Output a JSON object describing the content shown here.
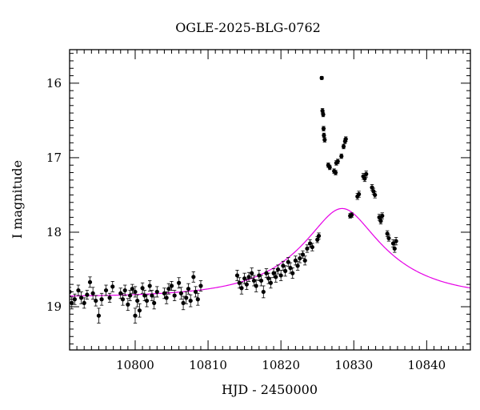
{
  "chart_data": {
    "type": "scatter",
    "title": "OGLE-2025-BLG-0762",
    "xlabel": "HJD - 2450000",
    "ylabel": "I magnitude",
    "xlim": [
      10791,
      10846
    ],
    "ylim": [
      19.58,
      15.55
    ],
    "y_inverted": true,
    "grid": false,
    "x_ticks": [
      10800,
      10810,
      10820,
      10830,
      10840
    ],
    "x_tick_labels": [
      "10800",
      "10810",
      "10820",
      "10830",
      "10840"
    ],
    "y_ticks": [
      16,
      17,
      18,
      19
    ],
    "y_tick_labels": [
      "16",
      "17",
      "18",
      "19"
    ],
    "colors": {
      "points": "#000000",
      "model": "#e600e6"
    },
    "model": {
      "t0": 10828.4,
      "tE": 11.5,
      "u0": 0.35,
      "base_mag": 18.87
    },
    "points": [
      {
        "x": 10791.0,
        "y": 18.8,
        "e": 0.06
      },
      {
        "x": 10791.3,
        "y": 18.95,
        "e": 0.08
      },
      {
        "x": 10791.7,
        "y": 18.9,
        "e": 0.07
      },
      {
        "x": 10792.2,
        "y": 18.78,
        "e": 0.07
      },
      {
        "x": 10792.6,
        "y": 18.88,
        "e": 0.08
      },
      {
        "x": 10793.0,
        "y": 18.95,
        "e": 0.07
      },
      {
        "x": 10793.4,
        "y": 18.84,
        "e": 0.06
      },
      {
        "x": 10793.8,
        "y": 18.67,
        "e": 0.07
      },
      {
        "x": 10794.2,
        "y": 18.82,
        "e": 0.08
      },
      {
        "x": 10794.6,
        "y": 18.92,
        "e": 0.07
      },
      {
        "x": 10795.0,
        "y": 19.12,
        "e": 0.1
      },
      {
        "x": 10795.4,
        "y": 18.9,
        "e": 0.08
      },
      {
        "x": 10796.0,
        "y": 18.78,
        "e": 0.07
      },
      {
        "x": 10796.5,
        "y": 18.88,
        "e": 0.06
      },
      {
        "x": 10796.9,
        "y": 18.73,
        "e": 0.07
      },
      {
        "x": 10798.0,
        "y": 18.82,
        "e": 0.07
      },
      {
        "x": 10798.3,
        "y": 18.9,
        "e": 0.08
      },
      {
        "x": 10798.6,
        "y": 18.78,
        "e": 0.07
      },
      {
        "x": 10799.0,
        "y": 18.97,
        "e": 0.08
      },
      {
        "x": 10799.3,
        "y": 18.85,
        "e": 0.07
      },
      {
        "x": 10799.6,
        "y": 18.76,
        "e": 0.06
      },
      {
        "x": 10800.0,
        "y": 18.8,
        "e": 0.07
      },
      {
        "x": 10800.0,
        "y": 19.12,
        "e": 0.1
      },
      {
        "x": 10800.3,
        "y": 18.92,
        "e": 0.08
      },
      {
        "x": 10800.6,
        "y": 19.05,
        "e": 0.09
      },
      {
        "x": 10801.0,
        "y": 18.75,
        "e": 0.07
      },
      {
        "x": 10801.3,
        "y": 18.85,
        "e": 0.07
      },
      {
        "x": 10801.6,
        "y": 18.92,
        "e": 0.08
      },
      {
        "x": 10802.0,
        "y": 18.72,
        "e": 0.07
      },
      {
        "x": 10802.3,
        "y": 18.85,
        "e": 0.07
      },
      {
        "x": 10802.6,
        "y": 18.95,
        "e": 0.08
      },
      {
        "x": 10803.0,
        "y": 18.8,
        "e": 0.07
      },
      {
        "x": 10804.0,
        "y": 18.82,
        "e": 0.07
      },
      {
        "x": 10804.3,
        "y": 18.88,
        "e": 0.08
      },
      {
        "x": 10804.6,
        "y": 18.76,
        "e": 0.07
      },
      {
        "x": 10805.0,
        "y": 18.72,
        "e": 0.06
      },
      {
        "x": 10805.4,
        "y": 18.85,
        "e": 0.07
      },
      {
        "x": 10806.0,
        "y": 18.68,
        "e": 0.07
      },
      {
        "x": 10806.3,
        "y": 18.82,
        "e": 0.08
      },
      {
        "x": 10806.6,
        "y": 18.95,
        "e": 0.09
      },
      {
        "x": 10807.0,
        "y": 18.88,
        "e": 0.08
      },
      {
        "x": 10807.3,
        "y": 18.76,
        "e": 0.07
      },
      {
        "x": 10807.6,
        "y": 18.92,
        "e": 0.08
      },
      {
        "x": 10808.0,
        "y": 18.6,
        "e": 0.07
      },
      {
        "x": 10808.3,
        "y": 18.8,
        "e": 0.07
      },
      {
        "x": 10808.6,
        "y": 18.9,
        "e": 0.08
      },
      {
        "x": 10809.0,
        "y": 18.72,
        "e": 0.07
      },
      {
        "x": 10814.0,
        "y": 18.58,
        "e": 0.07
      },
      {
        "x": 10814.3,
        "y": 18.68,
        "e": 0.07
      },
      {
        "x": 10814.6,
        "y": 18.75,
        "e": 0.08
      },
      {
        "x": 10815.0,
        "y": 18.62,
        "e": 0.07
      },
      {
        "x": 10815.3,
        "y": 18.7,
        "e": 0.07
      },
      {
        "x": 10815.6,
        "y": 18.6,
        "e": 0.06
      },
      {
        "x": 10816.0,
        "y": 18.55,
        "e": 0.07
      },
      {
        "x": 10816.3,
        "y": 18.65,
        "e": 0.07
      },
      {
        "x": 10816.6,
        "y": 18.72,
        "e": 0.08
      },
      {
        "x": 10817.0,
        "y": 18.58,
        "e": 0.07
      },
      {
        "x": 10817.3,
        "y": 18.65,
        "e": 0.07
      },
      {
        "x": 10817.6,
        "y": 18.8,
        "e": 0.08
      },
      {
        "x": 10818.0,
        "y": 18.55,
        "e": 0.06
      },
      {
        "x": 10818.3,
        "y": 18.62,
        "e": 0.07
      },
      {
        "x": 10818.6,
        "y": 18.68,
        "e": 0.07
      },
      {
        "x": 10819.0,
        "y": 18.55,
        "e": 0.06
      },
      {
        "x": 10819.3,
        "y": 18.6,
        "e": 0.07
      },
      {
        "x": 10819.6,
        "y": 18.5,
        "e": 0.06
      },
      {
        "x": 10820.0,
        "y": 18.58,
        "e": 0.07
      },
      {
        "x": 10820.3,
        "y": 18.45,
        "e": 0.06
      },
      {
        "x": 10820.6,
        "y": 18.52,
        "e": 0.07
      },
      {
        "x": 10821.0,
        "y": 18.4,
        "e": 0.06
      },
      {
        "x": 10821.3,
        "y": 18.48,
        "e": 0.07
      },
      {
        "x": 10821.6,
        "y": 18.55,
        "e": 0.07
      },
      {
        "x": 10822.0,
        "y": 18.38,
        "e": 0.06
      },
      {
        "x": 10822.3,
        "y": 18.45,
        "e": 0.06
      },
      {
        "x": 10822.6,
        "y": 18.35,
        "e": 0.06
      },
      {
        "x": 10823.0,
        "y": 18.3,
        "e": 0.05
      },
      {
        "x": 10823.3,
        "y": 18.38,
        "e": 0.06
      },
      {
        "x": 10823.6,
        "y": 18.22,
        "e": 0.05
      },
      {
        "x": 10824.0,
        "y": 18.15,
        "e": 0.05
      },
      {
        "x": 10824.3,
        "y": 18.2,
        "e": 0.05
      },
      {
        "x": 10825.0,
        "y": 18.1,
        "e": 0.04
      },
      {
        "x": 10825.2,
        "y": 18.05,
        "e": 0.04
      },
      {
        "x": 10825.6,
        "y": 15.93,
        "e": 0.02
      },
      {
        "x": 10825.7,
        "y": 16.37,
        "e": 0.03
      },
      {
        "x": 10825.8,
        "y": 16.42,
        "e": 0.03
      },
      {
        "x": 10825.85,
        "y": 16.61,
        "e": 0.03
      },
      {
        "x": 10825.9,
        "y": 16.7,
        "e": 0.03
      },
      {
        "x": 10826.0,
        "y": 16.76,
        "e": 0.03
      },
      {
        "x": 10826.5,
        "y": 17.1,
        "e": 0.03
      },
      {
        "x": 10826.7,
        "y": 17.13,
        "e": 0.03
      },
      {
        "x": 10827.3,
        "y": 17.18,
        "e": 0.03
      },
      {
        "x": 10827.5,
        "y": 17.2,
        "e": 0.03
      },
      {
        "x": 10827.6,
        "y": 17.07,
        "e": 0.03
      },
      {
        "x": 10827.8,
        "y": 17.05,
        "e": 0.03
      },
      {
        "x": 10828.3,
        "y": 16.98,
        "e": 0.03
      },
      {
        "x": 10828.6,
        "y": 16.85,
        "e": 0.03
      },
      {
        "x": 10828.8,
        "y": 16.78,
        "e": 0.03
      },
      {
        "x": 10828.9,
        "y": 16.75,
        "e": 0.03
      },
      {
        "x": 10829.5,
        "y": 17.78,
        "e": 0.03
      },
      {
        "x": 10829.7,
        "y": 17.77,
        "e": 0.03
      },
      {
        "x": 10830.5,
        "y": 17.52,
        "e": 0.04
      },
      {
        "x": 10830.7,
        "y": 17.49,
        "e": 0.04
      },
      {
        "x": 10831.3,
        "y": 17.25,
        "e": 0.04
      },
      {
        "x": 10831.5,
        "y": 17.28,
        "e": 0.04
      },
      {
        "x": 10831.7,
        "y": 17.22,
        "e": 0.04
      },
      {
        "x": 10832.5,
        "y": 17.4,
        "e": 0.04
      },
      {
        "x": 10832.7,
        "y": 17.45,
        "e": 0.04
      },
      {
        "x": 10832.9,
        "y": 17.5,
        "e": 0.04
      },
      {
        "x": 10833.5,
        "y": 17.8,
        "e": 0.04
      },
      {
        "x": 10833.7,
        "y": 17.85,
        "e": 0.04
      },
      {
        "x": 10833.9,
        "y": 17.78,
        "e": 0.04
      },
      {
        "x": 10834.6,
        "y": 18.02,
        "e": 0.04
      },
      {
        "x": 10834.8,
        "y": 18.08,
        "e": 0.04
      },
      {
        "x": 10835.4,
        "y": 18.15,
        "e": 0.05
      },
      {
        "x": 10835.6,
        "y": 18.22,
        "e": 0.05
      },
      {
        "x": 10835.8,
        "y": 18.12,
        "e": 0.05
      }
    ]
  }
}
